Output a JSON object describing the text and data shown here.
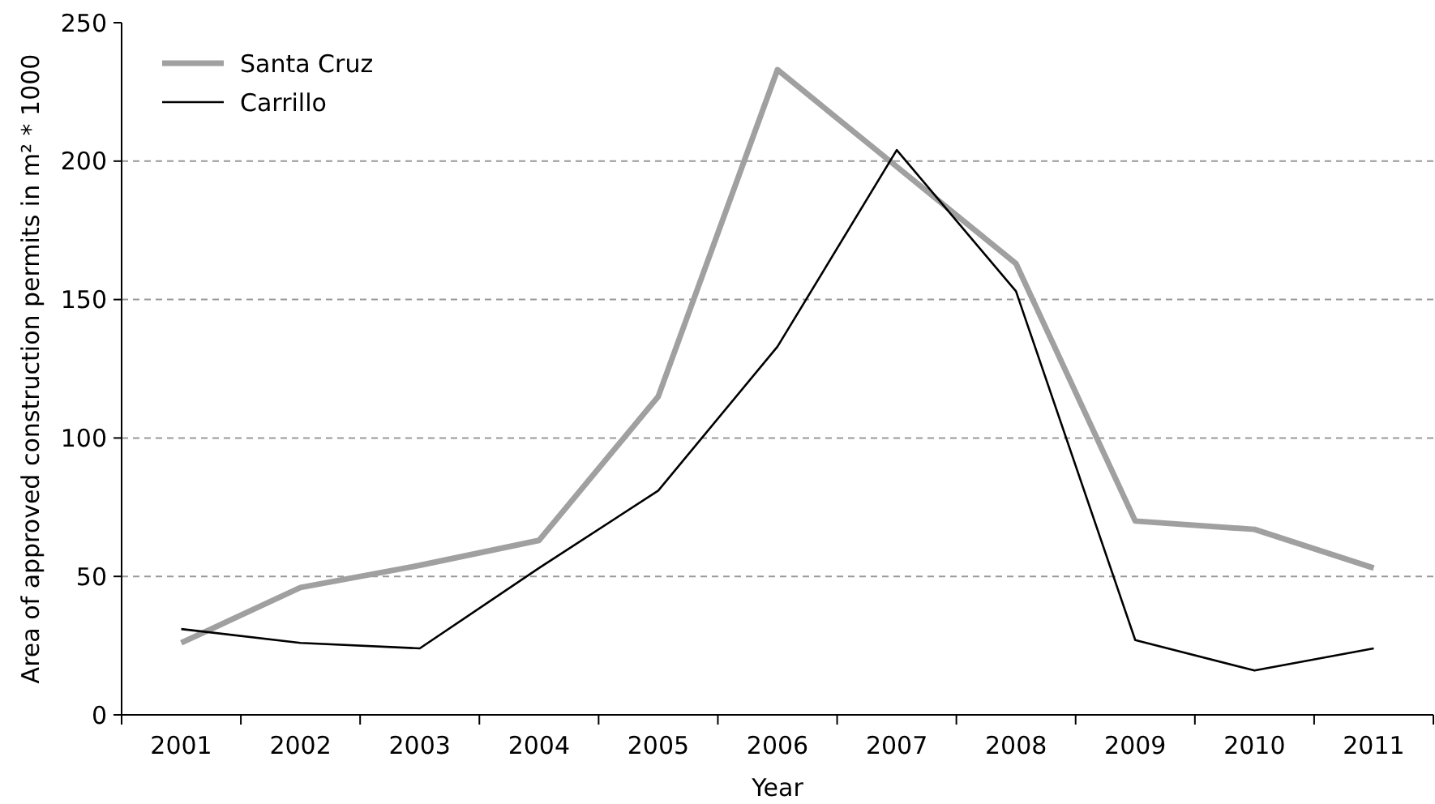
{
  "chart_data": {
    "type": "line",
    "xlabel": "Year",
    "ylabel": "Area of approved construction permits in m² * 1000",
    "categories": [
      "2001",
      "2002",
      "2003",
      "2004",
      "2005",
      "2006",
      "2007",
      "2008",
      "2009",
      "2010",
      "2011"
    ],
    "series": [
      {
        "name": "Santa Cruz",
        "color": "#a0a0a0",
        "values": [
          26,
          46,
          54,
          63,
          115,
          233,
          198,
          163,
          70,
          67,
          53
        ]
      },
      {
        "name": "Carrillo",
        "color": "#000000",
        "values": [
          31,
          26,
          24,
          53,
          81,
          133,
          204,
          153,
          27,
          16,
          24
        ]
      }
    ],
    "ylim": [
      0,
      250
    ],
    "yticks": [
      0,
      50,
      100,
      150,
      200,
      250
    ],
    "grid": "y",
    "legend": "top left",
    "marker": "none",
    "line_style": "solid"
  }
}
